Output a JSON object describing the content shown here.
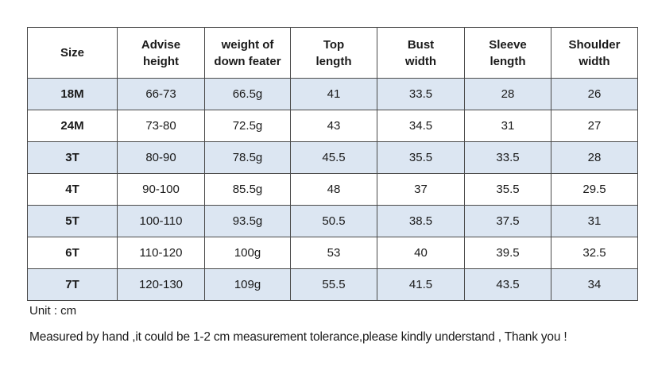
{
  "table": {
    "headers": [
      "Size",
      "Advise\nheight",
      "weight of\ndown feater",
      "Top\nlength",
      "Bust\nwidth",
      "Sleeve\nlength",
      "Shoulder\nwidth"
    ],
    "rows": [
      [
        "18M",
        "66-73",
        "66.5g",
        "41",
        "33.5",
        "28",
        "26"
      ],
      [
        "24M",
        "73-80",
        "72.5g",
        "43",
        "34.5",
        "31",
        "27"
      ],
      [
        "3T",
        "80-90",
        "78.5g",
        "45.5",
        "35.5",
        "33.5",
        "28"
      ],
      [
        "4T",
        "90-100",
        "85.5g",
        "48",
        "37",
        "35.5",
        "29.5"
      ],
      [
        "5T",
        "100-110",
        "93.5g",
        "50.5",
        "38.5",
        "37.5",
        "31"
      ],
      [
        "6T",
        "110-120",
        "100g",
        "53",
        "40",
        "39.5",
        "32.5"
      ],
      [
        "7T",
        "120-130",
        "109g",
        "55.5",
        "41.5",
        "43.5",
        "34"
      ]
    ],
    "shaded_row_color": "#dce6f2"
  },
  "notes": {
    "unit": "Unit : cm",
    "tolerance": "Measured by hand ,it could be 1-2 cm measurement tolerance,please kindly understand , Thank you !"
  }
}
